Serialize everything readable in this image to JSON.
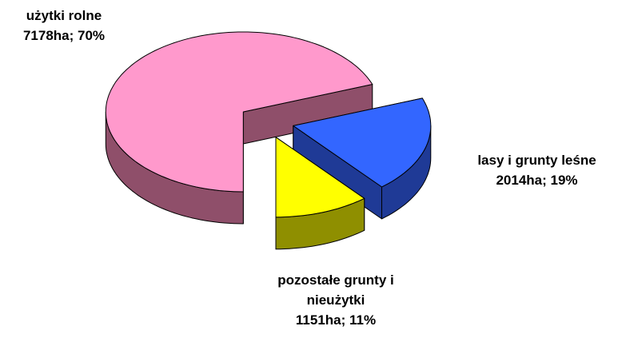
{
  "chart_data": {
    "type": "pie3d",
    "categories": [
      "użytki rolne",
      "lasy i grunty leśne",
      "pozostałe grunty i nieużytki"
    ],
    "values": [
      7178,
      2014,
      1151
    ],
    "value_labels": [
      "7178ha; 70%",
      "2014ha; 19%",
      "1151ha; 11%"
    ],
    "colors": [
      "#ff99cc",
      "#3366ff",
      "#ffff00"
    ],
    "side_colors": [
      "#8f4f6a",
      "#1f3a96",
      "#8f8f00"
    ]
  }
}
